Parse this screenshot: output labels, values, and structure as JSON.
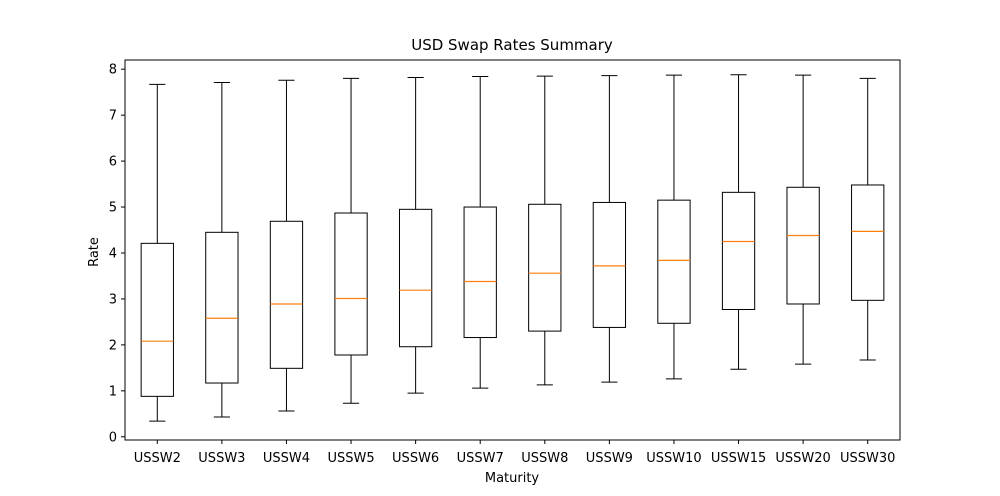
{
  "chart_data": {
    "type": "box",
    "title": "USD Swap Rates Summary",
    "xlabel": "Maturity",
    "ylabel": "Rate",
    "ylim": [
      -0.07,
      8.2
    ],
    "yticks": [
      0,
      1,
      2,
      3,
      4,
      5,
      6,
      7,
      8
    ],
    "grid": false,
    "colors": {
      "box": "#000000",
      "median": "#ff7f0e"
    },
    "categories": [
      "USSW2",
      "USSW3",
      "USSW4",
      "USSW5",
      "USSW6",
      "USSW7",
      "USSW8",
      "USSW9",
      "USSW10",
      "USSW15",
      "USSW20",
      "USSW30"
    ],
    "boxes": [
      {
        "whisker_low": 0.34,
        "q1": 0.88,
        "median": 2.08,
        "q3": 4.21,
        "whisker_high": 7.67
      },
      {
        "whisker_low": 0.43,
        "q1": 1.17,
        "median": 2.58,
        "q3": 4.45,
        "whisker_high": 7.71
      },
      {
        "whisker_low": 0.56,
        "q1": 1.49,
        "median": 2.89,
        "q3": 4.69,
        "whisker_high": 7.76
      },
      {
        "whisker_low": 0.73,
        "q1": 1.78,
        "median": 3.01,
        "q3": 4.87,
        "whisker_high": 7.8
      },
      {
        "whisker_low": 0.95,
        "q1": 1.96,
        "median": 3.19,
        "q3": 4.95,
        "whisker_high": 7.82
      },
      {
        "whisker_low": 1.06,
        "q1": 2.16,
        "median": 3.38,
        "q3": 5.0,
        "whisker_high": 7.84
      },
      {
        "whisker_low": 1.13,
        "q1": 2.3,
        "median": 3.56,
        "q3": 5.06,
        "whisker_high": 7.85
      },
      {
        "whisker_low": 1.19,
        "q1": 2.38,
        "median": 3.72,
        "q3": 5.1,
        "whisker_high": 7.86
      },
      {
        "whisker_low": 1.26,
        "q1": 2.47,
        "median": 3.84,
        "q3": 5.15,
        "whisker_high": 7.87
      },
      {
        "whisker_low": 1.47,
        "q1": 2.77,
        "median": 4.25,
        "q3": 5.32,
        "whisker_high": 7.88
      },
      {
        "whisker_low": 1.58,
        "q1": 2.89,
        "median": 4.38,
        "q3": 5.43,
        "whisker_high": 7.87
      },
      {
        "whisker_low": 1.67,
        "q1": 2.97,
        "median": 4.47,
        "q3": 5.48,
        "whisker_high": 7.8
      }
    ]
  }
}
